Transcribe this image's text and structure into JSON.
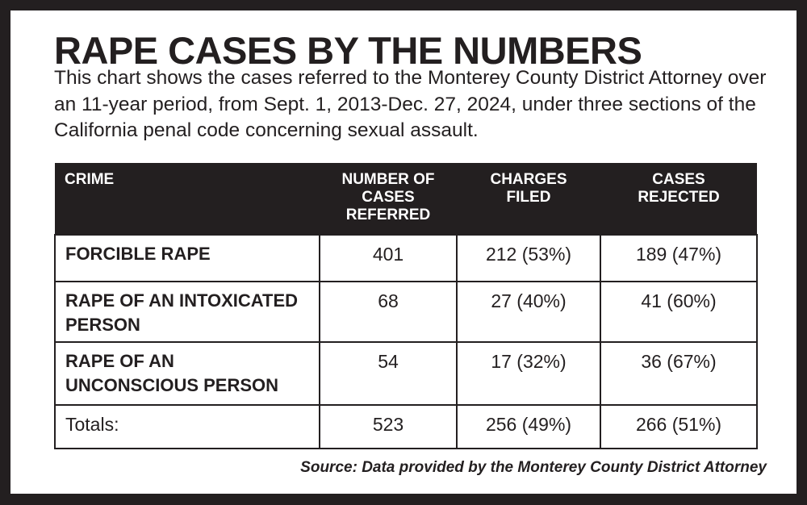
{
  "title": "RAPE CASES BY THE NUMBERS",
  "description": "This chart shows the cases referred to the Monterey County District Attorney over an 11-year period, from Sept. 1, 2013-Dec. 27, 2024, under three sections of the California penal code concerning sexual assault.",
  "chart_data": {
    "type": "table",
    "columns": [
      "CRIME",
      "NUMBER OF CASES REFERRED",
      "CHARGES FILED",
      "CASES REJECTED"
    ],
    "rows": [
      [
        "FORCIBLE RAPE",
        "401",
        "212 (53%)",
        "189 (47%)"
      ],
      [
        "RAPE OF AN INTOXICATED PERSON",
        "68",
        "27 (40%)",
        "41 (60%)"
      ],
      [
        "RAPE OF AN UNCONSCIOUS PERSON",
        "54",
        "17 (32%)",
        "36 (67%)"
      ],
      [
        "Totals:",
        "523",
        "256 (49%)",
        "266 (51%)"
      ]
    ]
  },
  "source": "Source: Data provided by the Monterey County District Attorney",
  "colors": {
    "frame": "#231f20",
    "header_bg": "#231f20",
    "background": "#ffffff"
  }
}
